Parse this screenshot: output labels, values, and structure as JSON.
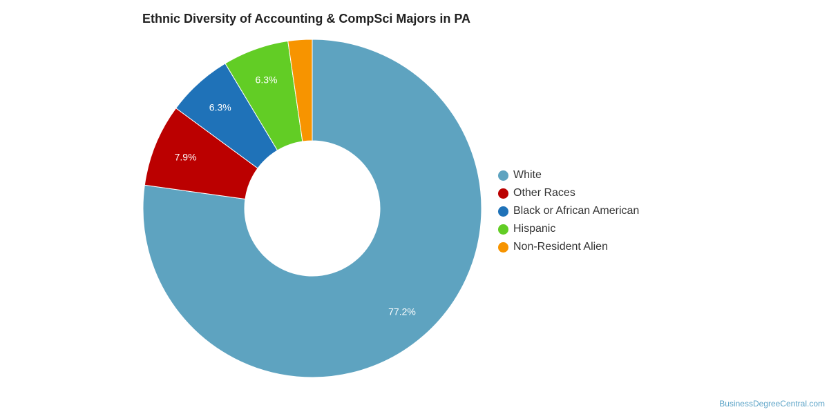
{
  "chart_data": {
    "type": "pie",
    "title": "Ethnic Diversity of Accounting & CompSci Majors in PA",
    "donut": true,
    "legend_position": "right",
    "series": [
      {
        "name": "White",
        "value": 77.2,
        "label": "77.2%",
        "color": "#5ea3c0"
      },
      {
        "name": "Black or African American",
        "value": 6.3,
        "label": "6.3%",
        "color": "#1f72b8"
      },
      {
        "name": "Other Races",
        "value": 7.9,
        "label": "7.9%",
        "color": "#bb0000"
      },
      {
        "name": "Hispanic",
        "value": 6.3,
        "label": "6.3%",
        "color": "#62cd25"
      },
      {
        "name": "Non-Resident Alien",
        "value": 2.3,
        "label": "",
        "color": "#f79400"
      }
    ],
    "slice_order": [
      0,
      2,
      1,
      3,
      4
    ],
    "legend_order": [
      "White",
      "Other Races",
      "Black or African American",
      "Hispanic",
      "Non-Resident Alien"
    ]
  },
  "footer": {
    "source": "BusinessDegreeCentral.com"
  }
}
